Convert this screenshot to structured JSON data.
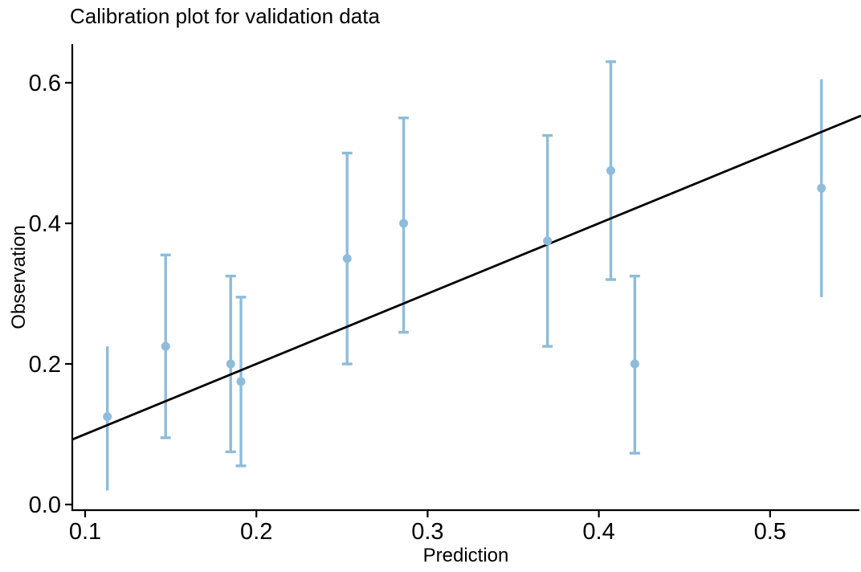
{
  "chart_data": {
    "type": "scatter",
    "title": "Calibration plot for validation data",
    "xlabel": "Prediction",
    "ylabel": "Observation",
    "xlim": [
      0.092,
      0.555
    ],
    "ylim": [
      -0.008,
      0.655
    ],
    "grid": false,
    "legend": "none",
    "x_ticks": [
      0.1,
      0.2,
      0.3,
      0.4,
      0.5
    ],
    "x_tick_labels": [
      "0.1",
      "0.2",
      "0.3",
      "0.4",
      "0.5"
    ],
    "y_ticks": [
      0.0,
      0.2,
      0.4,
      0.6
    ],
    "y_tick_labels": [
      "0.0",
      "0.2",
      "0.4",
      "0.6"
    ],
    "point_color": "#8EBCDA",
    "reference_line": {
      "type": "identity",
      "slope": 1,
      "intercept": 0,
      "color": "#000000"
    },
    "series": [
      {
        "name": "calibration-points",
        "points": [
          {
            "x": 0.113,
            "y": 0.125,
            "lo": 0.02,
            "hi": 0.225,
            "caps": false
          },
          {
            "x": 0.147,
            "y": 0.225,
            "lo": 0.095,
            "hi": 0.355,
            "caps": true
          },
          {
            "x": 0.185,
            "y": 0.2,
            "lo": 0.075,
            "hi": 0.325,
            "caps": true
          },
          {
            "x": 0.191,
            "y": 0.175,
            "lo": 0.055,
            "hi": 0.295,
            "caps": true
          },
          {
            "x": 0.253,
            "y": 0.35,
            "lo": 0.2,
            "hi": 0.5,
            "caps": true
          },
          {
            "x": 0.286,
            "y": 0.4,
            "lo": 0.245,
            "hi": 0.55,
            "caps": true
          },
          {
            "x": 0.37,
            "y": 0.375,
            "lo": 0.225,
            "hi": 0.525,
            "caps": true
          },
          {
            "x": 0.407,
            "y": 0.475,
            "lo": 0.32,
            "hi": 0.63,
            "caps": true
          },
          {
            "x": 0.421,
            "y": 0.2,
            "lo": 0.073,
            "hi": 0.325,
            "caps": true
          },
          {
            "x": 0.53,
            "y": 0.45,
            "lo": 0.295,
            "hi": 0.605,
            "caps": false
          }
        ]
      }
    ]
  }
}
